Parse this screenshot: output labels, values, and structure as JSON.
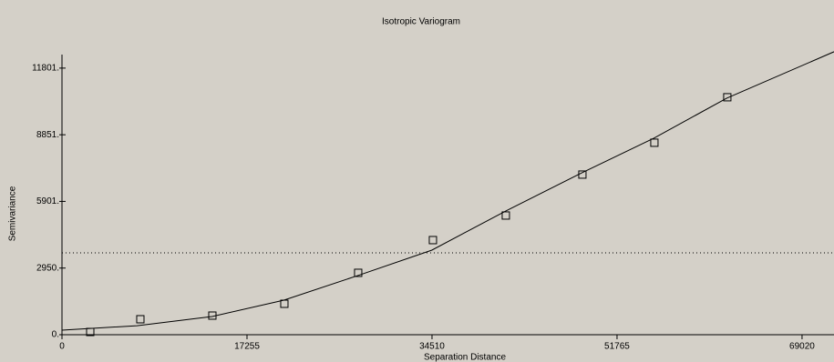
{
  "chart_data": {
    "type": "scatter",
    "title": "Isotropic Variogram",
    "x_label": "Separation Distance",
    "y_label": "Semivariance",
    "xlim": [
      0,
      72000
    ],
    "ylim": [
      0,
      12400
    ],
    "xticks": [
      0,
      17255,
      34510,
      51765,
      69020
    ],
    "yticks": [
      {
        "value": 0,
        "label": "0."
      },
      {
        "value": 2950,
        "label": "2950."
      },
      {
        "value": 5901,
        "label": "5901."
      },
      {
        "value": 8851,
        "label": "8851."
      },
      {
        "value": 11801,
        "label": "11801."
      }
    ],
    "color": "#000000",
    "series": [
      {
        "x": [
          2635,
          7310,
          14025,
          20740,
          27624,
          34594,
          41394,
          48534,
          55249,
          62049
        ],
        "values": [
          121,
          685,
          846,
          1369,
          2739,
          4188,
          5276,
          7088,
          8498,
          10511
        ]
      }
    ],
    "fit": {
      "x": [
        0,
        7000,
        14000,
        20700,
        27600,
        34500,
        41400,
        48500,
        55200,
        62000,
        72000
      ],
      "values": [
        200,
        400,
        805,
        1530,
        2620,
        3745,
        5480,
        7170,
        8700,
        10470,
        12525
      ]
    },
    "reference_line": {
      "y": 3625
    }
  }
}
